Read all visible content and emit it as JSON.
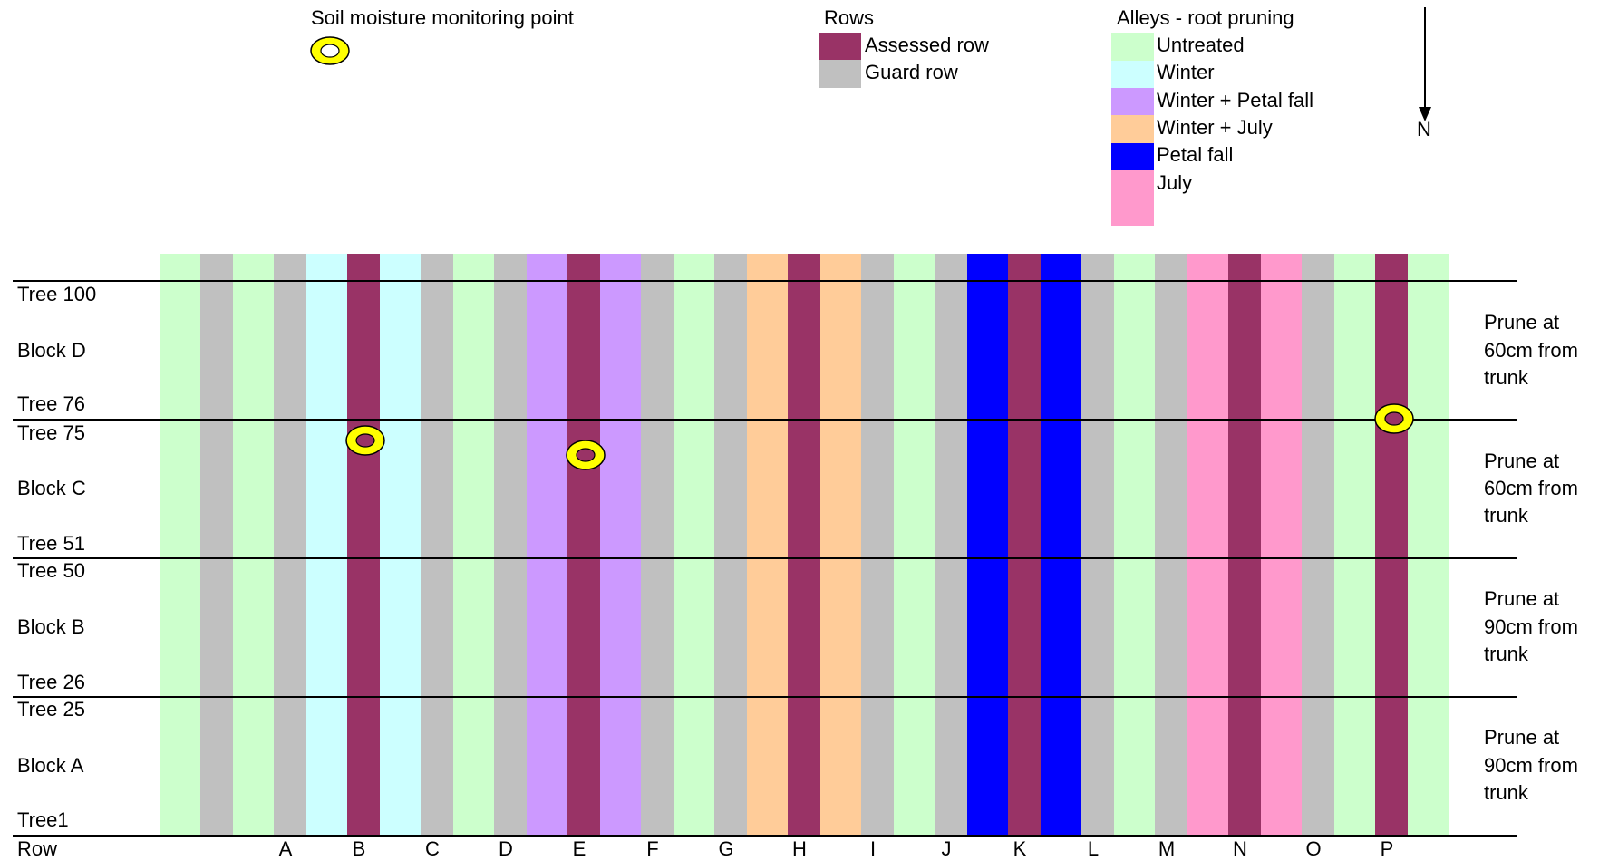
{
  "legend_monitor": {
    "label": "Soil moisture monitoring point",
    "color_fill": "#ffff00",
    "color_inner": "#993366"
  },
  "legend_rows": {
    "title": "Rows",
    "items": [
      {
        "label": "Assessed row",
        "color": "#993366"
      },
      {
        "label": "Guard row",
        "color": "#c0c0c0"
      }
    ]
  },
  "legend_alleys": {
    "title": "Alleys - root pruning",
    "items": [
      {
        "label": "Untreated",
        "color": "#ccffcc"
      },
      {
        "label": "Winter",
        "color": "#ccffff"
      },
      {
        "label": "Winter + Petal fall",
        "color": "#cc99ff"
      },
      {
        "label": "Winter + July",
        "color": "#ffcc99"
      },
      {
        "label": "Petal fall",
        "color": "#0000ff"
      },
      {
        "label": "July",
        "color": "#ff99cc"
      }
    ]
  },
  "north_label": "N",
  "row_axis_label": "Row",
  "row_labels": [
    "A",
    "B",
    "C",
    "D",
    "E",
    "F",
    "G",
    "H",
    "I",
    "J",
    "K",
    "L",
    "M",
    "N",
    "O",
    "P"
  ],
  "strips": [
    "U",
    "G",
    "U",
    "G",
    "W",
    "A",
    "W",
    "G",
    "U",
    "G",
    "WP",
    "A",
    "WP",
    "G",
    "U",
    "G",
    "WJ",
    "A",
    "WJ",
    "G",
    "U",
    "G",
    "P",
    "A",
    "P",
    "G",
    "U",
    "G",
    "J",
    "A",
    "J",
    "G",
    "U",
    "A",
    "U"
  ],
  "strip_colors": {
    "U": "#ccffcc",
    "G": "#c0c0c0",
    "W": "#ccffff",
    "A": "#993366",
    "WP": "#cc99ff",
    "WJ": "#ffcc99",
    "P": "#0000ff",
    "J": "#ff99cc"
  },
  "blocks": [
    {
      "name": "Block D",
      "top_tree": "Tree 100",
      "bottom_tree": "Tree 76",
      "prune": [
        "Prune at",
        "60cm from",
        "trunk"
      ]
    },
    {
      "name": "Block C",
      "top_tree": "Tree 75",
      "bottom_tree": "Tree 51",
      "prune": [
        "Prune at",
        "60cm from",
        "trunk"
      ]
    },
    {
      "name": "Block B",
      "top_tree": "Tree 50",
      "bottom_tree": "Tree 26",
      "prune": [
        "Prune at",
        "90cm from",
        "trunk"
      ]
    },
    {
      "name": "Block A",
      "top_tree": "Tree 25",
      "bottom_tree": "Tree1",
      "prune": [
        "Prune at",
        "90cm from",
        "trunk"
      ]
    }
  ]
}
